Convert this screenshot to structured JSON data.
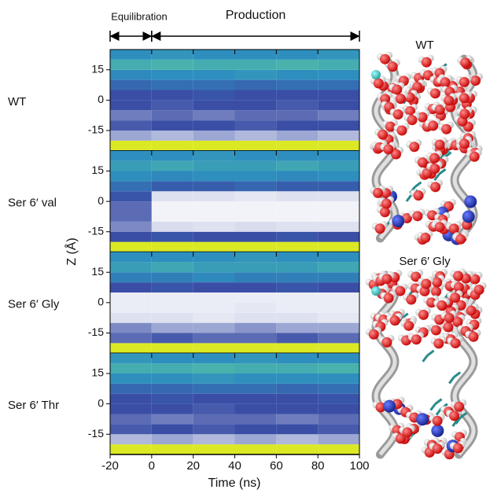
{
  "chart_data": {
    "type": "heatmap",
    "xlabel": "Time (ns)",
    "ylabel": "Z (Å)",
    "xlim": [
      -20,
      100
    ],
    "xticks": [
      -20,
      0,
      20,
      40,
      60,
      80,
      100
    ],
    "ylim": [
      -25,
      25
    ],
    "yticks": [
      -15,
      0,
      15
    ],
    "x_bins": [
      -20,
      0,
      20,
      40,
      60,
      80,
      100
    ],
    "y_bins": [
      -25,
      -20,
      -15,
      -10,
      -5,
      0,
      5,
      10,
      15,
      20,
      25
    ],
    "colormap": [
      {
        "value": 0,
        "color": "#ffffff"
      },
      {
        "value": 0.3,
        "color": "#3a4ea6"
      },
      {
        "value": 0.5,
        "color": "#2e8fbf"
      },
      {
        "value": 0.7,
        "color": "#5cc8a0"
      },
      {
        "value": 1,
        "color": "#f4f00c"
      }
    ],
    "annotations": [
      {
        "text": "Equilibration",
        "x": [
          -20,
          0
        ]
      },
      {
        "text": "Production",
        "x": [
          0,
          100
        ]
      }
    ],
    "panels": [
      {
        "name": "WT",
        "values": [
          [
            0.95,
            0.95,
            0.95,
            0.95,
            0.95,
            0.95
          ],
          [
            0.15,
            0.12,
            0.15,
            0.12,
            0.15,
            0.12
          ],
          [
            0.28,
            0.3,
            0.3,
            0.28,
            0.3,
            0.3
          ],
          [
            0.22,
            0.25,
            0.22,
            0.25,
            0.25,
            0.22
          ],
          [
            0.3,
            0.28,
            0.3,
            0.3,
            0.28,
            0.3
          ],
          [
            0.3,
            0.3,
            0.32,
            0.3,
            0.3,
            0.3
          ],
          [
            0.38,
            0.4,
            0.4,
            0.38,
            0.4,
            0.4
          ],
          [
            0.48,
            0.5,
            0.5,
            0.52,
            0.5,
            0.5
          ],
          [
            0.6,
            0.62,
            0.6,
            0.6,
            0.62,
            0.6
          ],
          [
            0.5,
            0.52,
            0.5,
            0.5,
            0.5,
            0.52
          ]
        ]
      },
      {
        "name": "Ser 6′ val",
        "values": [
          [
            0.95,
            0.95,
            0.95,
            0.95,
            0.95,
            0.95
          ],
          [
            0.3,
            0.32,
            0.3,
            0.3,
            0.32,
            0.3
          ],
          [
            0.2,
            0.06,
            0.05,
            0.06,
            0.05,
            0.05
          ],
          [
            0.25,
            0.02,
            0.02,
            0.02,
            0.02,
            0.02
          ],
          [
            0.25,
            0.02,
            0.02,
            0.02,
            0.02,
            0.02
          ],
          [
            0.32,
            0.05,
            0.05,
            0.04,
            0.05,
            0.05
          ],
          [
            0.4,
            0.35,
            0.35,
            0.38,
            0.35,
            0.35
          ],
          [
            0.5,
            0.48,
            0.5,
            0.5,
            0.48,
            0.5
          ],
          [
            0.55,
            0.58,
            0.55,
            0.55,
            0.58,
            0.55
          ],
          [
            0.5,
            0.5,
            0.52,
            0.5,
            0.5,
            0.5
          ]
        ]
      },
      {
        "name": "Ser 6′ Gly",
        "values": [
          [
            0.95,
            0.95,
            0.95,
            0.95,
            0.95,
            0.95
          ],
          [
            0.25,
            0.28,
            0.25,
            0.25,
            0.28,
            0.25
          ],
          [
            0.2,
            0.15,
            0.15,
            0.18,
            0.15,
            0.15
          ],
          [
            0.05,
            0.05,
            0.04,
            0.05,
            0.05,
            0.04
          ],
          [
            0.03,
            0.03,
            0.03,
            0.04,
            0.03,
            0.03
          ],
          [
            0.03,
            0.03,
            0.03,
            0.03,
            0.03,
            0.03
          ],
          [
            0.3,
            0.32,
            0.3,
            0.3,
            0.32,
            0.3
          ],
          [
            0.45,
            0.45,
            0.48,
            0.45,
            0.45,
            0.45
          ],
          [
            0.55,
            0.58,
            0.55,
            0.55,
            0.55,
            0.58
          ],
          [
            0.5,
            0.5,
            0.5,
            0.52,
            0.5,
            0.5
          ]
        ]
      },
      {
        "name": "Ser 6′ Thr",
        "values": [
          [
            0.95,
            0.95,
            0.95,
            0.95,
            0.95,
            0.95
          ],
          [
            0.12,
            0.15,
            0.12,
            0.15,
            0.12,
            0.15
          ],
          [
            0.28,
            0.3,
            0.28,
            0.3,
            0.3,
            0.28
          ],
          [
            0.25,
            0.22,
            0.25,
            0.25,
            0.22,
            0.25
          ],
          [
            0.3,
            0.3,
            0.28,
            0.3,
            0.3,
            0.3
          ],
          [
            0.3,
            0.32,
            0.3,
            0.3,
            0.3,
            0.32
          ],
          [
            0.38,
            0.38,
            0.4,
            0.4,
            0.38,
            0.4
          ],
          [
            0.5,
            0.5,
            0.52,
            0.5,
            0.5,
            0.5
          ],
          [
            0.6,
            0.6,
            0.62,
            0.6,
            0.6,
            0.62
          ],
          [
            0.52,
            0.5,
            0.5,
            0.52,
            0.5,
            0.5
          ]
        ]
      }
    ]
  },
  "images": [
    {
      "title": "WT"
    },
    {
      "title": "Ser 6′ Gly"
    }
  ]
}
